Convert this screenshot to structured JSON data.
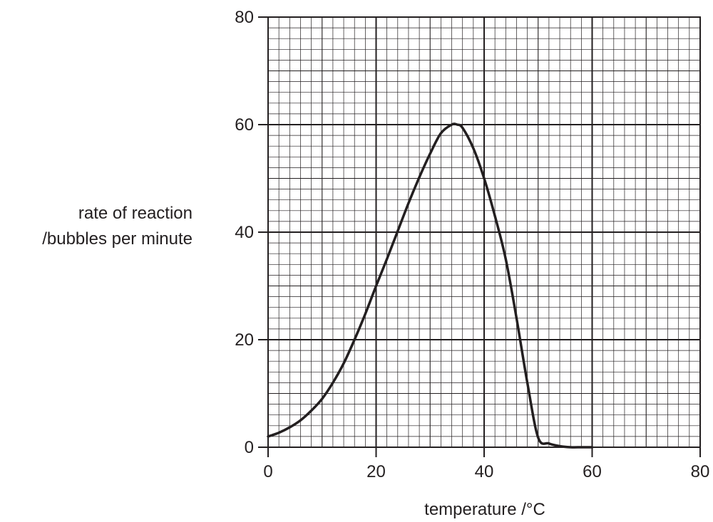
{
  "chart_data": {
    "type": "line",
    "title": "",
    "xlabel": "temperature /°C",
    "ylabel_line1": "rate of reaction",
    "ylabel_line2": "/bubbles per minute",
    "xlim": [
      0,
      80
    ],
    "ylim": [
      0,
      80
    ],
    "xticks": [
      "0",
      "20",
      "40",
      "60",
      "80"
    ],
    "yticks": [
      "0",
      "20",
      "40",
      "60",
      "80"
    ],
    "grid": true,
    "grid_minor_step": 2,
    "grid_major_step": 10,
    "line_color": "#231f20",
    "grid_color": "#231f20",
    "series": [
      {
        "x": [
          0,
          2,
          4,
          6,
          8,
          10,
          12,
          14,
          16,
          18,
          20,
          22,
          24,
          26,
          28,
          30,
          32,
          34,
          35,
          36,
          38,
          40,
          42,
          44,
          46,
          48,
          50,
          52,
          54,
          56,
          58,
          60
        ],
        "y": [
          2,
          2.7,
          3.7,
          5,
          6.8,
          9,
          12,
          15.6,
          20,
          24.8,
          30,
          35,
          40.2,
          45.4,
          50.2,
          54.6,
          58.4,
          60,
          60,
          59.4,
          55.6,
          50,
          43,
          35,
          24,
          12,
          1.8,
          0.7,
          0.2,
          0,
          0,
          0
        ]
      }
    ]
  }
}
